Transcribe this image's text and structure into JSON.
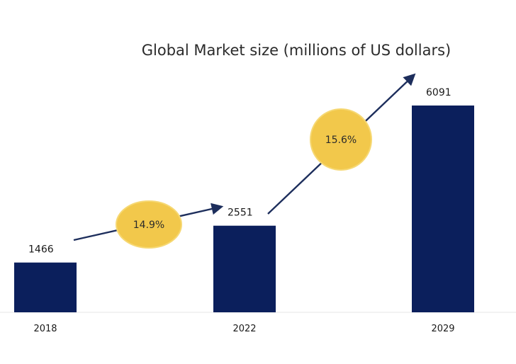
{
  "chart_data": {
    "type": "bar",
    "title": "Global Market size (millions of US dollars)",
    "categories": [
      "2018",
      "2022",
      "2029"
    ],
    "values": [
      1466,
      2551,
      6091
    ],
    "value_labels": [
      "1466",
      "2551",
      "6091"
    ],
    "xlabel": "",
    "ylabel": "",
    "ylim": [
      0,
      6500
    ],
    "grid": false,
    "legend": "none",
    "growth_rates": [
      {
        "label": "14.9%",
        "from": "2018",
        "to": "2022"
      },
      {
        "label": "15.6%",
        "from": "2022",
        "to": "2029"
      }
    ],
    "colors": {
      "bar": "#0b1f5c",
      "arrow": "#1d2e5c",
      "bubble": "#f2c84b",
      "bubble_edge": "#f6d873",
      "baseline": "#e6e6e6"
    }
  }
}
